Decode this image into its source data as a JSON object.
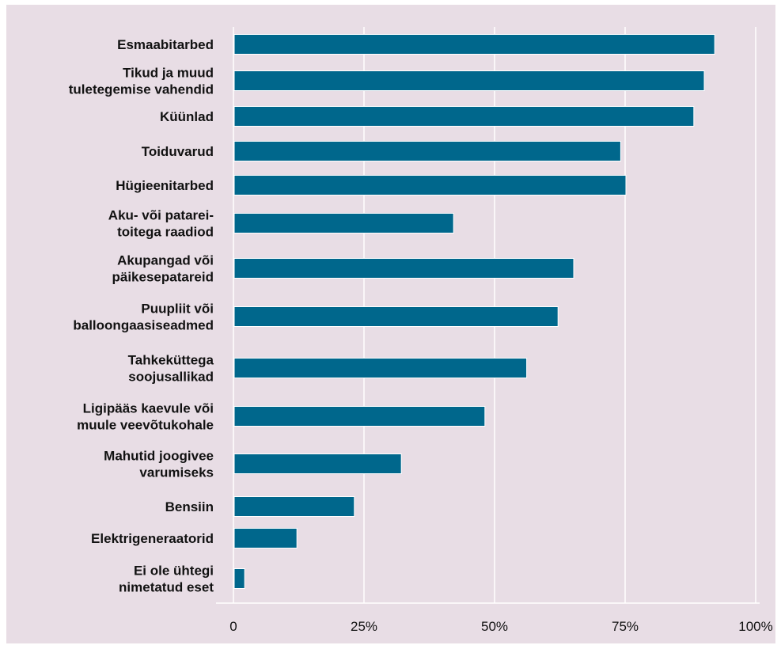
{
  "chart_data": {
    "type": "bar",
    "orientation": "horizontal",
    "categories": [
      [
        "Esmaabitarbed"
      ],
      [
        "Tikud ja muud",
        "tuletegemise vahendid"
      ],
      [
        "Küünlad"
      ],
      [
        "Toiduvarud"
      ],
      [
        "Hügieenitarbed"
      ],
      [
        "Aku- või patarei-",
        "toitega raadiod"
      ],
      [
        "Akupangad või",
        "päikesepatareid"
      ],
      [
        "Puupliit või",
        "balloongaasiseadmed"
      ],
      [
        "Tahkeküttega",
        "soojusallikad"
      ],
      [
        "Ligipääs kaevule või",
        "muule veevõtukohale"
      ],
      [
        "Mahutid joogivee",
        "varumiseks"
      ],
      [
        "Bensiin"
      ],
      [
        "Elektrigeneraatorid"
      ],
      [
        "Ei ole ühtegi",
        "nimetatud eset"
      ]
    ],
    "values": [
      92,
      90,
      88,
      74,
      75,
      42,
      65,
      62,
      56,
      48,
      32,
      23,
      12,
      2
    ],
    "xlim": [
      0,
      100
    ],
    "ticks": [
      0,
      25,
      50,
      75,
      100
    ],
    "tick_labels": [
      "0",
      "25%",
      "50%",
      "75%",
      "100%"
    ],
    "grid": true,
    "bar_color": "#00678c",
    "background_color": "#e8dde5",
    "grid_color": "#ffffff"
  }
}
